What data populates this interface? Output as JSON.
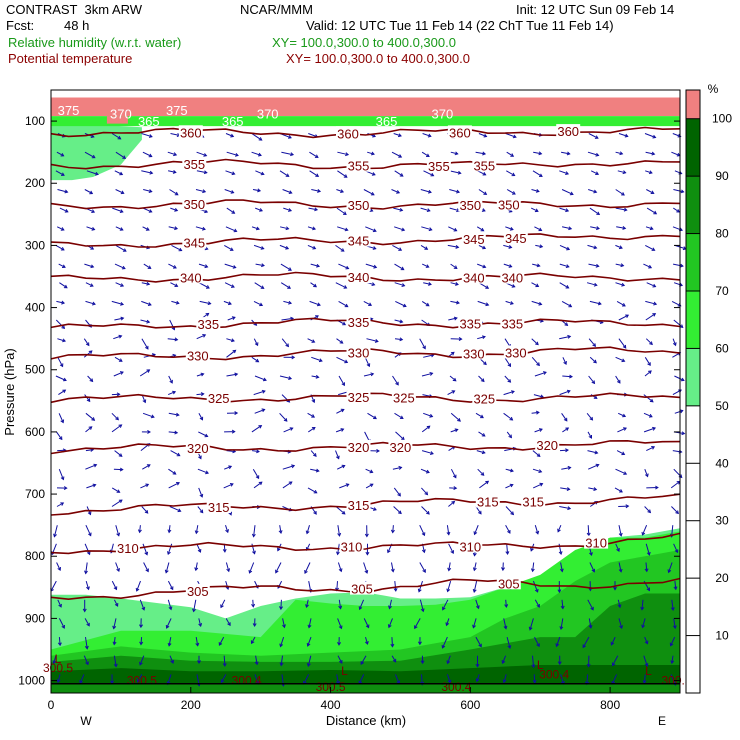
{
  "header": {
    "title": "CONTRAST  3km ARW",
    "center": "NCAR/MMM",
    "init": "Init: 12 UTC Sun 09 Feb 14",
    "fcst_label": "Fcst:",
    "fcst_value": "48 h",
    "valid": "Valid: 12 UTC Tue 11 Feb 14 (22 ChT Tue 11 Feb 14)",
    "field1": "Relative humidity (w.r.t. water)",
    "field1_xy": "XY= 100.0,300.0 to 400.0,300.0",
    "field2": "Potential temperature",
    "field2_xy": "XY= 100.0,300.0 to 400.0,300.0"
  },
  "colors": {
    "theta": "#7a0000",
    "wind": "#1010a0",
    "dark_red": "#800000",
    "pink": "#f08080"
  },
  "chart_data": {
    "type": "cross-section",
    "xlabel": "Distance (km)",
    "ylabel": "Pressure (hPa)",
    "xlim": [
      0,
      900
    ],
    "ylim": [
      1020,
      50
    ],
    "x_ticks": [
      0,
      200,
      400,
      600,
      800
    ],
    "y_ticks": [
      100,
      200,
      300,
      400,
      500,
      600,
      700,
      800,
      900,
      1000
    ],
    "west_label": "W",
    "east_label": "E",
    "colorbar": {
      "unit": "%",
      "ticks": [
        10,
        20,
        30,
        40,
        50,
        60,
        70,
        80,
        90,
        100
      ],
      "bins": [
        {
          "from": 100,
          "to": 105,
          "color": "#f08080"
        },
        {
          "from": 90,
          "to": 100,
          "color": "#006400"
        },
        {
          "from": 80,
          "to": 90,
          "color": "#0f8f0f"
        },
        {
          "from": 70,
          "to": 80,
          "color": "#22c622"
        },
        {
          "from": 60,
          "to": 70,
          "color": "#33ee33"
        },
        {
          "from": 50,
          "to": 60,
          "color": "#66ee88"
        },
        {
          "from": 0,
          "to": 50,
          "color": "#ffffff"
        }
      ]
    },
    "theta_levels": [
      {
        "value": 305,
        "p": [
          866,
          858,
          852,
          852,
          842,
          846,
          840
        ],
        "labels": [
          {
            "text": "305",
            "x": 210
          },
          {
            "text": "305",
            "x": 445
          },
          {
            "text": "305",
            "x": 655
          }
        ]
      },
      {
        "value": 310,
        "p": [
          790,
          786,
          785,
          784,
          784,
          780,
          770
        ],
        "labels": [
          {
            "text": "310",
            "x": 110
          },
          {
            "text": "310",
            "x": 430
          },
          {
            "text": "310",
            "x": 600
          },
          {
            "text": "310",
            "x": 780
          }
        ]
      },
      {
        "value": 315,
        "p": [
          727,
          722,
          720,
          717,
          712,
          712,
          707
        ],
        "labels": [
          {
            "text": "315",
            "x": 240
          },
          {
            "text": "315",
            "x": 440
          },
          {
            "text": "315",
            "x": 625
          },
          {
            "text": "315",
            "x": 690
          }
        ]
      },
      {
        "value": 320,
        "p": [
          628,
          626,
          625,
          624,
          624,
          620,
          620
        ],
        "labels": [
          {
            "text": "320",
            "x": 210
          },
          {
            "text": "320",
            "x": 440
          },
          {
            "text": "320",
            "x": 500
          },
          {
            "text": "320",
            "x": 710
          }
        ]
      },
      {
        "value": 325,
        "p": [
          548,
          547,
          545,
          544,
          546,
          545,
          545
        ],
        "labels": [
          {
            "text": "325",
            "x": 240
          },
          {
            "text": "325",
            "x": 440
          },
          {
            "text": "325",
            "x": 505
          },
          {
            "text": "325",
            "x": 620
          }
        ]
      },
      {
        "value": 330,
        "p": [
          482,
          478,
          476,
          472,
          474,
          470,
          470
        ],
        "labels": [
          {
            "text": "330",
            "x": 210
          },
          {
            "text": "330",
            "x": 440
          },
          {
            "text": "330",
            "x": 605
          },
          {
            "text": "330",
            "x": 665
          }
        ]
      },
      {
        "value": 335,
        "p": [
          435,
          428,
          425,
          423,
          426,
          425,
          425
        ],
        "labels": [
          {
            "text": "335",
            "x": 225
          },
          {
            "text": "335",
            "x": 440
          },
          {
            "text": "335",
            "x": 600
          },
          {
            "text": "335",
            "x": 660
          }
        ]
      },
      {
        "value": 340,
        "p": [
          355,
          352,
          350,
          351,
          352,
          352,
          350
        ],
        "labels": [
          {
            "text": "340",
            "x": 200
          },
          {
            "text": "340",
            "x": 440
          },
          {
            "text": "340",
            "x": 605
          },
          {
            "text": "340",
            "x": 660
          }
        ]
      },
      {
        "value": 345,
        "p": [
          300,
          296,
          294,
          292,
          290,
          285,
          282
        ],
        "labels": [
          {
            "text": "345",
            "x": 205
          },
          {
            "text": "345",
            "x": 440
          },
          {
            "text": "345",
            "x": 605
          },
          {
            "text": "345",
            "x": 665
          }
        ]
      },
      {
        "value": 350,
        "p": [
          236,
          234,
          233,
          235,
          235,
          233,
          232
        ],
        "labels": [
          {
            "text": "350",
            "x": 205
          },
          {
            "text": "350",
            "x": 440
          },
          {
            "text": "350",
            "x": 600
          },
          {
            "text": "350",
            "x": 655
          }
        ]
      },
      {
        "value": 355,
        "p": [
          170,
          170,
          168,
          172,
          172,
          166,
          168
        ],
        "labels": [
          {
            "text": "355",
            "x": 205
          },
          {
            "text": "355",
            "x": 440
          },
          {
            "text": "355",
            "x": 555
          },
          {
            "text": "355",
            "x": 620
          }
        ]
      },
      {
        "value": 360,
        "p": [
          118,
          118,
          118,
          120,
          118,
          116,
          116
        ],
        "labels": [
          {
            "text": "360",
            "x": 200
          },
          {
            "text": "360",
            "x": 425
          },
          {
            "text": "360",
            "x": 585
          },
          {
            "text": "360",
            "x": 740
          }
        ]
      },
      {
        "value": 365,
        "p": [
          100,
          100,
          100,
          100,
          100,
          100,
          100
        ],
        "labels": [
          {
            "text": "365",
            "x": 140
          },
          {
            "text": "365",
            "x": 260
          },
          {
            "text": "365",
            "x": 480
          }
        ]
      },
      {
        "value": 370,
        "p": [
          88,
          88,
          88,
          88,
          88,
          88,
          88
        ],
        "labels": [
          {
            "text": "370",
            "x": 100
          },
          {
            "text": "370",
            "x": 310
          },
          {
            "text": "370",
            "x": 560
          }
        ]
      },
      {
        "value": 375,
        "p": [
          82,
          82,
          82,
          82,
          82,
          82,
          82
        ],
        "labels": [
          {
            "text": "375",
            "x": 25
          },
          {
            "text": "375",
            "x": 180
          }
        ]
      }
    ],
    "theta_x": [
      0,
      150,
      300,
      450,
      600,
      750,
      900
    ],
    "surface_labels": [
      {
        "text": "300.5",
        "x": 10,
        "p": 980
      },
      {
        "text": "300.5",
        "x": 130,
        "p": 1000
      },
      {
        "text": "300.4",
        "x": 280,
        "p": 1000
      },
      {
        "text": "300.5",
        "x": 400,
        "p": 1010
      },
      {
        "text": "300.4",
        "x": 580,
        "p": 1010
      },
      {
        "text": "300.4",
        "x": 720,
        "p": 990
      },
      {
        "text": "300.5",
        "x": 895,
        "p": 1000
      }
    ],
    "low_labels": [
      {
        "text": "L",
        "x": 10,
        "p": 965
      },
      {
        "text": "L",
        "x": 420,
        "p": 985
      },
      {
        "text": "L",
        "x": 700,
        "p": 975
      },
      {
        "text": "L",
        "x": 855,
        "p": 985
      }
    ],
    "rh_layers": [
      {
        "rh": 55,
        "x": [
          0,
          50,
          100,
          150,
          200,
          250,
          300,
          350,
          400,
          450,
          500,
          550,
          600,
          650,
          700,
          750,
          800,
          850,
          900
        ],
        "top": [
          862,
          862,
          868,
          875,
          882,
          900,
          880,
          868,
          860,
          858,
          868,
          868,
          866,
          850,
          840,
          800,
          770,
          765,
          755
        ],
        "bottom": 1020
      },
      {
        "rh": 65,
        "x": [
          0,
          100,
          200,
          300,
          350,
          400,
          450,
          500,
          550,
          600,
          650,
          700,
          750,
          800,
          850,
          900
        ],
        "top": [
          950,
          920,
          920,
          930,
          870,
          876,
          880,
          880,
          878,
          870,
          850,
          830,
          790,
          770,
          770,
          760
        ],
        "bottom": 1020
      },
      {
        "rh": 75,
        "x": [
          0,
          100,
          200,
          300,
          400,
          500,
          550,
          600,
          650,
          700,
          750,
          800,
          850,
          900
        ],
        "top": [
          960,
          945,
          955,
          960,
          955,
          950,
          940,
          930,
          900,
          880,
          840,
          810,
          800,
          790
        ],
        "bottom": 1020
      },
      {
        "rh": 85,
        "x": [
          0,
          100,
          200,
          300,
          400,
          500,
          600,
          650,
          700,
          750,
          800,
          850,
          900
        ],
        "top": [
          970,
          960,
          968,
          970,
          970,
          968,
          950,
          940,
          930,
          930,
          880,
          860,
          860
        ],
        "bottom": 1020
      },
      {
        "rh": 95,
        "x": [
          0,
          100,
          200,
          300,
          400,
          500,
          600,
          700,
          800,
          900
        ],
        "top": [
          985,
          980,
          985,
          985,
          983,
          985,
          980,
          975,
          975,
          975
        ],
        "bottom": 1005
      },
      {
        "rh": 55,
        "x": [
          0,
          30,
          60,
          100,
          130
        ],
        "top": [
          105,
          105,
          105,
          108,
          110
        ],
        "bottom_x": [
          130,
          100,
          60,
          30,
          0
        ],
        "bottom": [
          130,
          170,
          190,
          195,
          195
        ]
      },
      {
        "rh": 102,
        "x": [
          0,
          900
        ],
        "top": [
          62,
          62
        ],
        "bottom": 92
      },
      {
        "rh": 60,
        "x": [
          0,
          900
        ],
        "top": [
          92,
          92
        ],
        "bottom": 108
      },
      {
        "rh": 103,
        "x": [
          80,
          110
        ],
        "top": [
          92,
          92
        ],
        "bottom": 104
      }
    ]
  }
}
